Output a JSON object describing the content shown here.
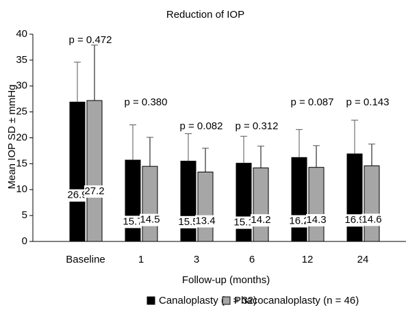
{
  "chart_data": {
    "type": "bar",
    "title": "Reduction of IOP",
    "x_label": "Follow-up (months)",
    "y_label": "Mean IOP SD ± mmHg",
    "categories": [
      "Baseline",
      "1",
      "3",
      "6",
      "12",
      "24"
    ],
    "series": [
      {
        "name": "Canaloplasty (n = 32)",
        "color": "#000000",
        "values": [
          26.9,
          15.7,
          15.5,
          15.1,
          16.2,
          16.9
        ],
        "errors": [
          7.7,
          6.8,
          5.3,
          5.2,
          5.4,
          6.5
        ]
      },
      {
        "name": "Phacocanaloplasty (n = 46)",
        "color": "#a6a6a6",
        "values": [
          27.2,
          14.5,
          13.4,
          14.2,
          14.3,
          14.6
        ],
        "errors": [
          10.7,
          5.6,
          4.6,
          4.2,
          4.2,
          4.2
        ]
      }
    ],
    "annotations": [
      "p = 0.472",
      "p = 0.380",
      "p = 0.082",
      "p = 0.312",
      "p = 0.087",
      "p = 0.143"
    ],
    "ylim": [
      0,
      40
    ],
    "yticks": [
      0,
      5,
      10,
      15,
      20,
      25,
      30,
      35,
      40
    ],
    "grid": false,
    "legend": "bottom"
  }
}
